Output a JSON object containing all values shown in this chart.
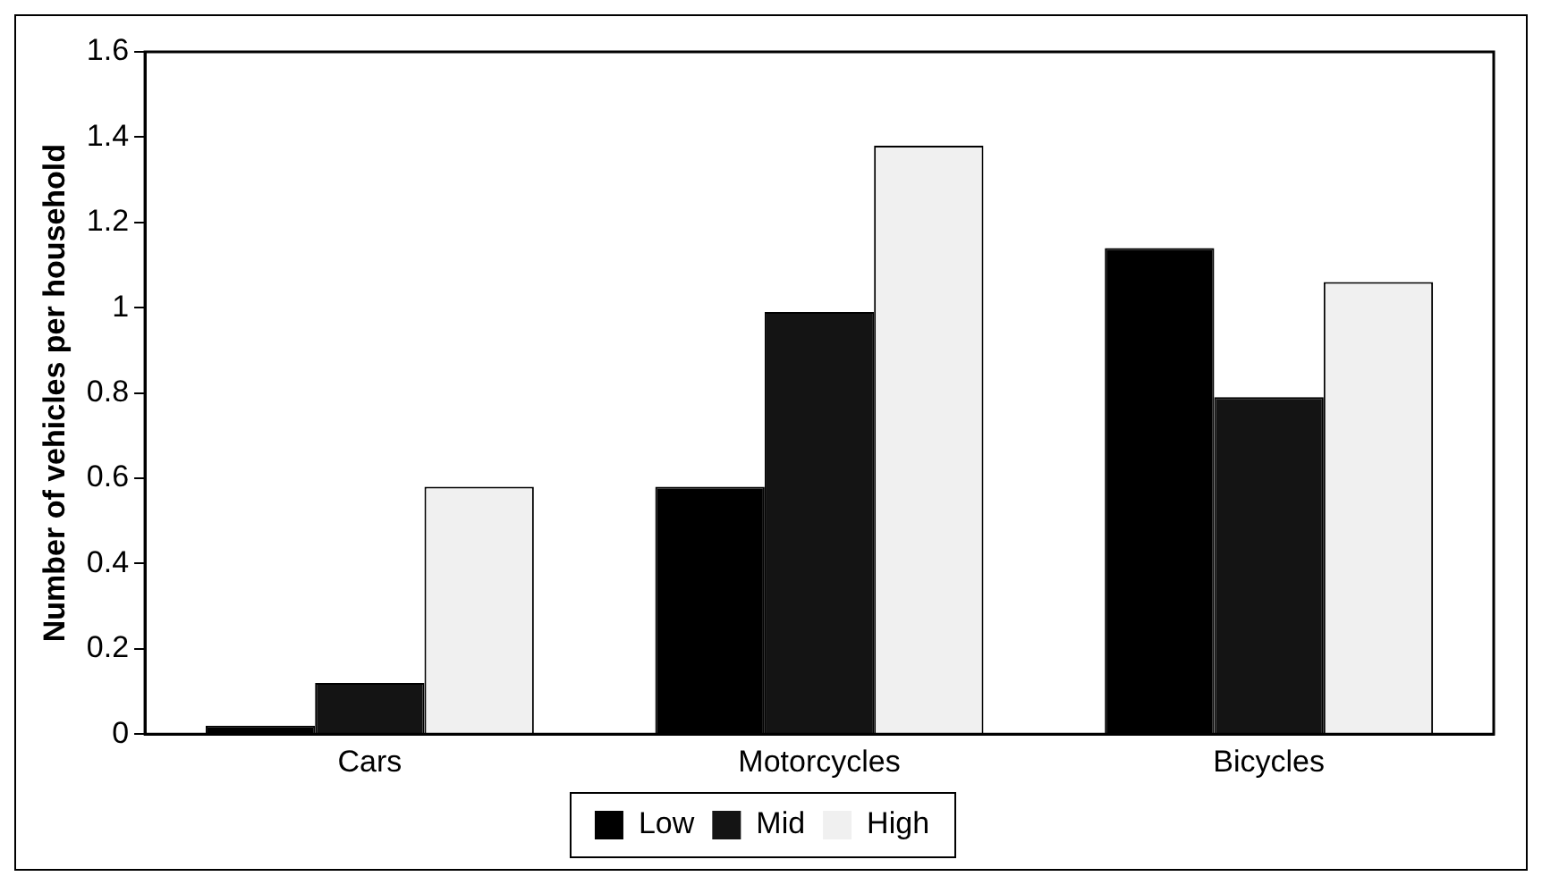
{
  "chart_data": {
    "type": "bar",
    "ylabel": "Number of vehicles per household",
    "categories": [
      "Cars",
      "Motorcycles",
      "Bicycles"
    ],
    "series": [
      {
        "name": "Low",
        "color": "#000000",
        "values": [
          0.02,
          0.58,
          1.14
        ]
      },
      {
        "name": "Mid",
        "color": "#141414",
        "values": [
          0.12,
          0.99,
          0.79
        ]
      },
      {
        "name": "High",
        "color": "#f0f0f0",
        "values": [
          0.58,
          1.38,
          1.06
        ]
      }
    ],
    "ylim": [
      0,
      1.6
    ],
    "yticks": [
      0,
      0.2,
      0.4,
      0.6,
      0.8,
      1,
      1.2,
      1.4,
      1.6
    ],
    "grid": false,
    "legend": "bottom"
  }
}
